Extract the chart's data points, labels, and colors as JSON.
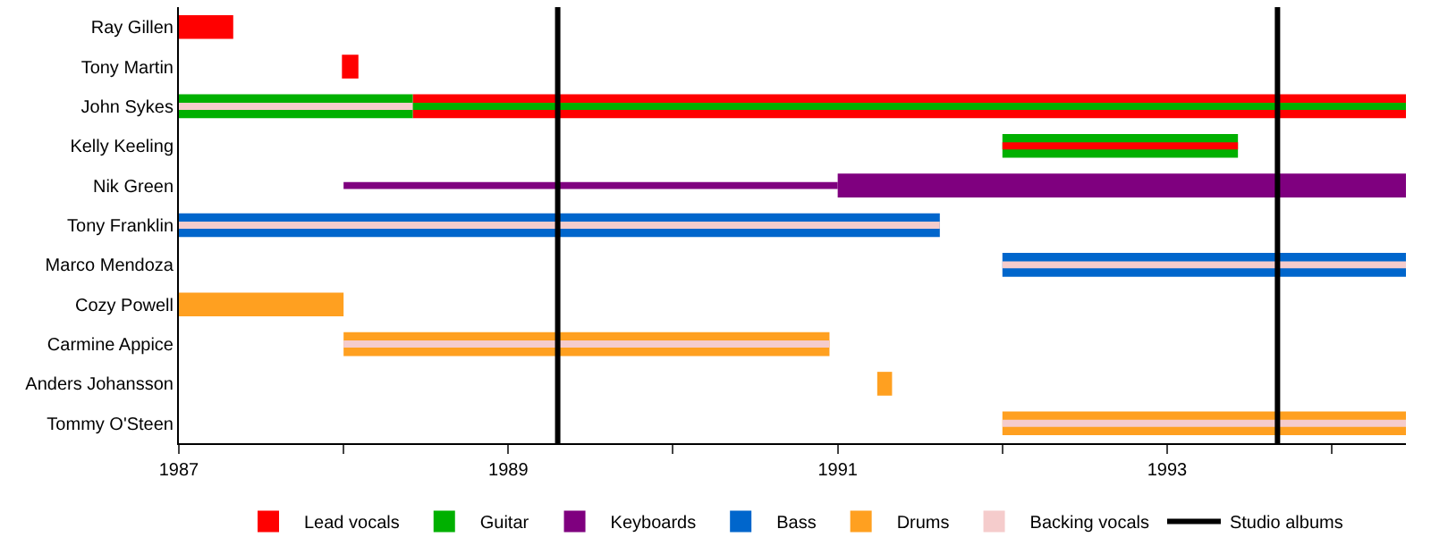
{
  "chart_data": {
    "type": "bar",
    "orientation": "horizontal",
    "legend": "bottom",
    "categories": [
      "Ray Gillen",
      "Tony Martin",
      "John Sykes",
      "Kelly Keeling",
      "Nik Green",
      "Tony Franklin",
      "Marco Mendoza",
      "Cozy Powell",
      "Carmine Appice",
      "Anders Johansson",
      "Tommy O'Steen"
    ],
    "xlim": [
      1987,
      1994.45
    ],
    "xticks": [
      1987,
      {
        "value": 1988,
        "label": null
      },
      1989,
      {
        "value": 1990,
        "label": null
      },
      1991,
      {
        "value": 1992,
        "label": null
      },
      1993,
      {
        "value": 1994,
        "label": null
      }
    ],
    "series": [
      {
        "name": "Lead vocals",
        "color": "#ff0000",
        "base": [
          1987,
          1987.99,
          1988.42,
          null,
          null,
          null,
          null,
          null,
          null,
          null,
          null
        ],
        "values": [
          0.33,
          0.1,
          6.03,
          null,
          null,
          null,
          null,
          null,
          null,
          null,
          null
        ]
      },
      {
        "name": "Guitar",
        "color": "#00b000",
        "base": [
          null,
          null,
          1987,
          1992,
          null,
          null,
          null,
          null,
          null,
          null,
          null
        ],
        "values": [
          null,
          null,
          1.42,
          1.43,
          null,
          null,
          null,
          null,
          null,
          null,
          null
        ]
      },
      {
        "name": "Keyboards",
        "color": "#7f007f",
        "base": [
          null,
          null,
          null,
          null,
          1991,
          null,
          null,
          null,
          null,
          null,
          null
        ],
        "values": [
          null,
          null,
          null,
          null,
          3.45,
          null,
          null,
          null,
          null,
          null,
          null
        ]
      },
      {
        "name": "Bass",
        "color": "#0066cc",
        "base": [
          null,
          null,
          null,
          null,
          null,
          1987,
          1992,
          null,
          null,
          null,
          null
        ],
        "values": [
          null,
          null,
          null,
          null,
          null,
          4.62,
          2.45,
          null,
          null,
          null,
          null
        ]
      },
      {
        "name": "Drums",
        "color": "#ffa020",
        "base": [
          null,
          null,
          null,
          null,
          null,
          null,
          null,
          1987,
          1988,
          1991.24,
          1992
        ],
        "values": [
          null,
          null,
          null,
          null,
          null,
          null,
          null,
          1.0,
          2.95,
          0.09,
          2.45
        ]
      },
      {
        "color": "#00b000",
        "base": [
          null,
          null,
          1988.42,
          null,
          null,
          null,
          null,
          null,
          null,
          null,
          null
        ],
        "values": [
          null,
          null,
          6.03,
          null,
          null,
          null,
          null,
          null,
          null,
          null,
          null
        ]
      },
      {
        "color": "#ff0000",
        "base": [
          null,
          null,
          null,
          1992,
          null,
          null,
          null,
          null,
          null,
          null,
          null
        ],
        "values": [
          null,
          null,
          null,
          1.43,
          null,
          null,
          null,
          null,
          null,
          null,
          null
        ]
      },
      {
        "color": "#7f007f",
        "base": [
          null,
          null,
          null,
          null,
          1988,
          null,
          null,
          null,
          null,
          null,
          null
        ],
        "values": [
          null,
          null,
          null,
          null,
          3.0,
          null,
          null,
          null,
          null,
          null,
          null
        ]
      },
      {
        "name": "Backing vocals",
        "color": "#f5cccc",
        "base": [
          null,
          null,
          1987,
          null,
          null,
          1987,
          1992,
          null,
          1988,
          null,
          1992
        ],
        "values": [
          null,
          null,
          1.42,
          null,
          null,
          4.62,
          2.45,
          null,
          2.95,
          null,
          2.45
        ]
      }
    ],
    "ref_lines": [
      {
        "axis": "x",
        "value": 1989.3,
        "label": "Studio albums",
        "color": "#000000"
      },
      {
        "axis": "x",
        "value": 1993.67,
        "color": "#000000"
      }
    ]
  }
}
